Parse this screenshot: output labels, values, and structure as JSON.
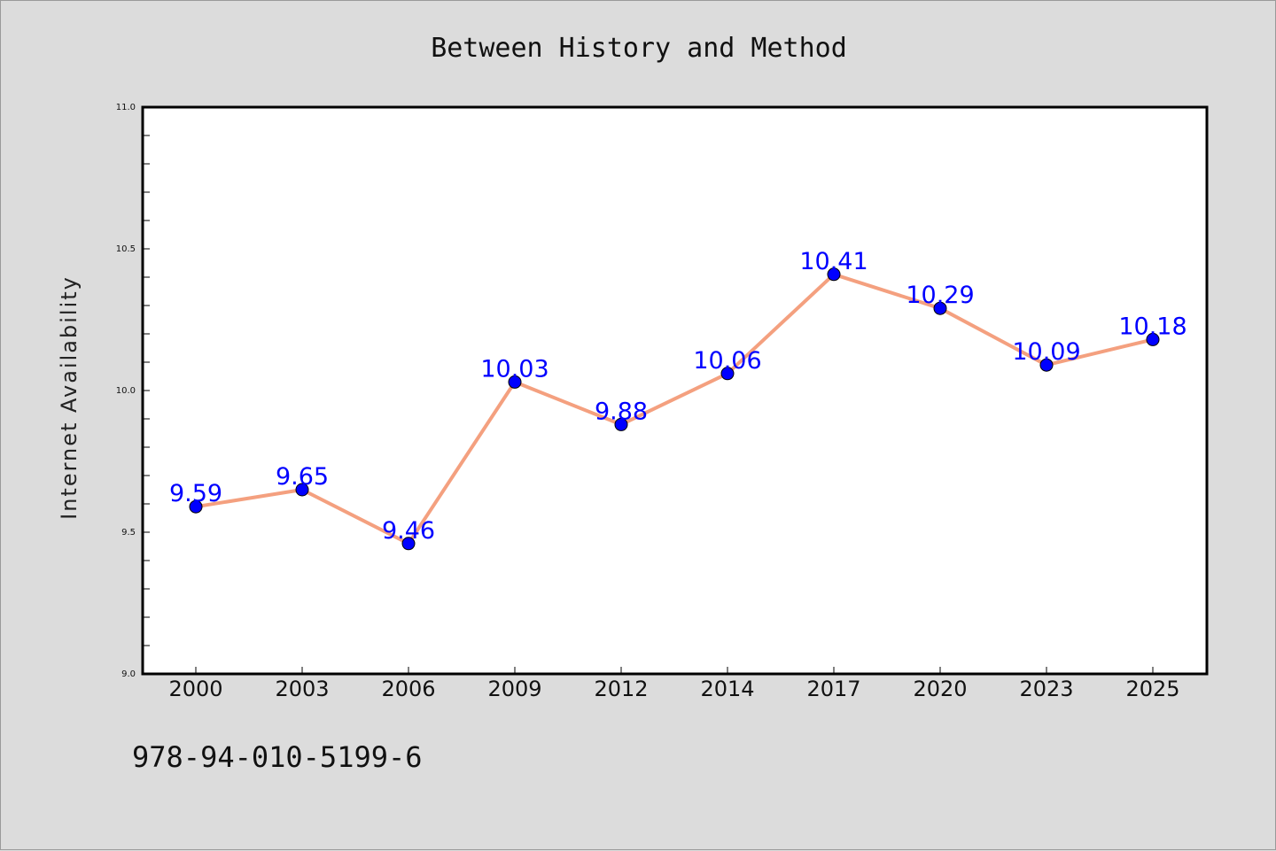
{
  "chart_data": {
    "type": "line",
    "title": "Between History and Method",
    "xlabel": "",
    "ylabel": "Internet Availability",
    "categories": [
      "2000",
      "2003",
      "2006",
      "2009",
      "2012",
      "2014",
      "2017",
      "2020",
      "2023",
      "2025"
    ],
    "series": [
      {
        "values": [
          9.59,
          9.65,
          9.46,
          10.03,
          9.88,
          10.06,
          10.41,
          10.29,
          10.09,
          10.18
        ],
        "labels": [
          "9.59",
          "9.65",
          "9.46",
          "10.03",
          "9.88",
          "10.06",
          "10.41",
          "10.29",
          "10.09",
          "10.18"
        ],
        "line_color": "#f4a07f",
        "marker_color": "#0000ff",
        "label_color": "#0000ff"
      }
    ],
    "ylim": [
      9.0,
      11.0
    ],
    "yticks": [
      "9.0",
      "9.5",
      "10.0",
      "10.5",
      "11.0"
    ],
    "grid": false,
    "legend": "none"
  },
  "footer": {
    "isbn": "978-94-010-5199-6"
  },
  "colors": {
    "background": "#dcdcdc",
    "plot_background": "#ffffff",
    "axes": "#000000"
  }
}
